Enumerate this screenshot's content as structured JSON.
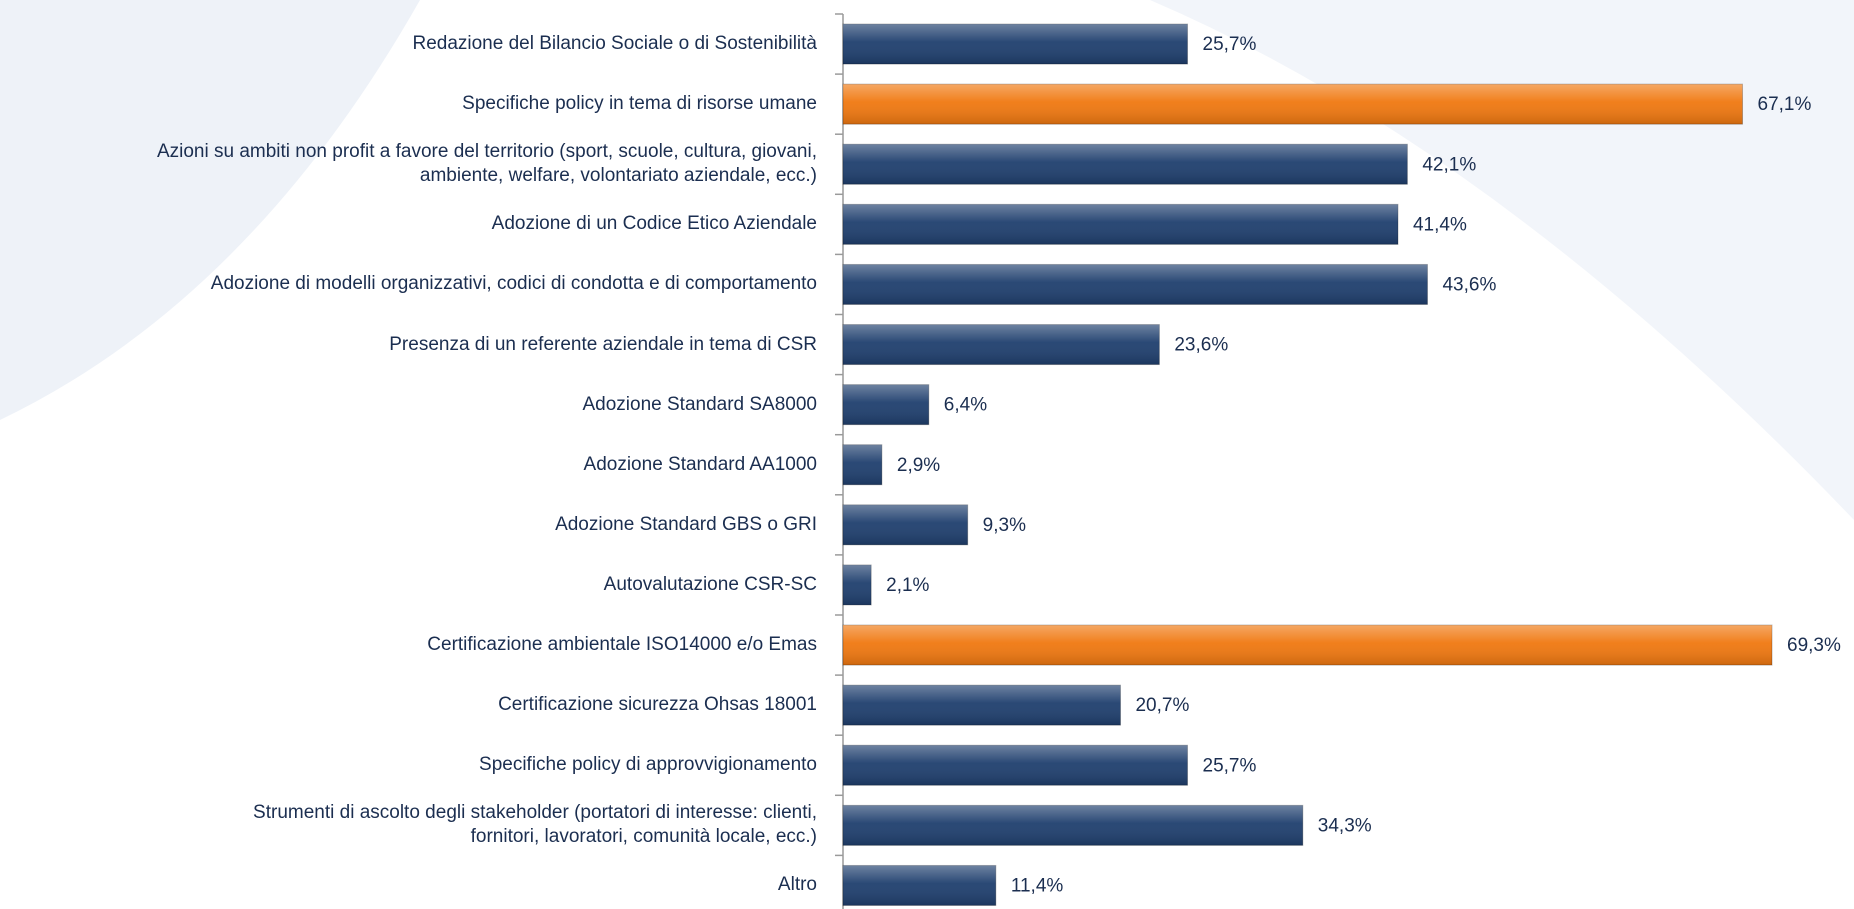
{
  "chart_data": {
    "type": "bar",
    "orientation": "horizontal",
    "categories": [
      "Redazione del Bilancio Sociale o di Sostenibilità",
      "Specifiche policy in tema di risorse umane",
      "Azioni su ambiti non profit a favore del territorio (sport, scuole, cultura, giovani,\nambiente, welfare, volontariato aziendale, ecc.)",
      "Adozione di un Codice Etico Aziendale",
      "Adozione di modelli organizzativi, codici di condotta e di comportamento",
      "Presenza di un referente aziendale in tema di CSR",
      "Adozione Standard SA8000",
      "Adozione Standard AA1000",
      "Adozione Standard GBS o GRI",
      "Autovalutazione CSR-SC",
      "Certificazione ambientale ISO14000 e/o Emas",
      "Certificazione sicurezza Ohsas 18001",
      "Specifiche policy di approvvigionamento",
      "Strumenti di ascolto degli stakeholder (portatori di interesse: clienti,\nfornitori, lavoratori, comunità locale, ecc.)",
      "Altro"
    ],
    "values": [
      25.7,
      67.1,
      42.1,
      41.4,
      43.6,
      23.6,
      6.4,
      2.9,
      9.3,
      2.1,
      69.3,
      20.7,
      25.7,
      34.3,
      11.4
    ],
    "value_labels": [
      "25,7%",
      "67,1%",
      "42,1%",
      "41,4%",
      "43,6%",
      "23,6%",
      "6,4%",
      "2,9%",
      "9,3%",
      "2,1%",
      "69,3%",
      "20,7%",
      "25,7%",
      "34,3%",
      "11,4%"
    ],
    "colors": [
      "#1f3f6e",
      "#f07810",
      "#1f3f6e",
      "#1f3f6e",
      "#1f3f6e",
      "#1f3f6e",
      "#1f3f6e",
      "#1f3f6e",
      "#1f3f6e",
      "#1f3f6e",
      "#f07810",
      "#1f3f6e",
      "#1f3f6e",
      "#1f3f6e",
      "#1f3f6e"
    ]
  }
}
